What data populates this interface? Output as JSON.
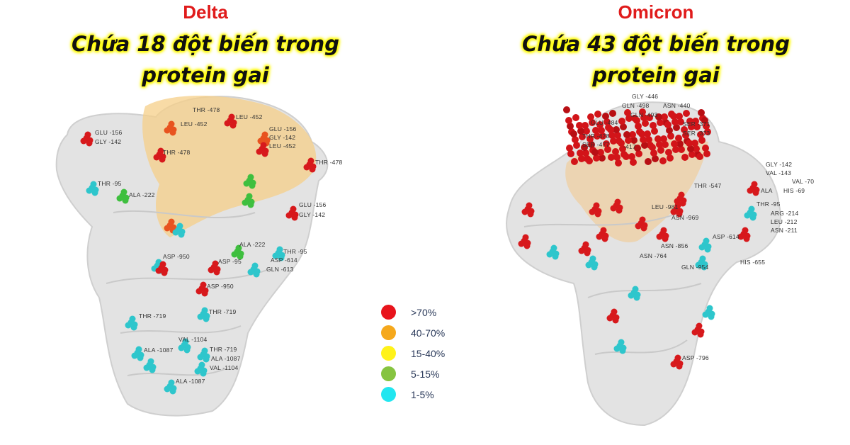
{
  "delta": {
    "name": "Delta",
    "subtitle_line1": "Chứa 18 đột biến trong",
    "subtitle_line2": "protein gai",
    "labels": [
      "THR -478",
      "LEU -452",
      "LEU -452",
      "GLU -156",
      "GLY -142",
      "LEU -452",
      "THR -478",
      "GLU -156",
      "GLY -142",
      "THR -478",
      "THR -95",
      "ALA -222",
      "GLU -156",
      "GLY -142",
      "ASP -950",
      "ALA -222",
      "THR -95",
      "ASP -95",
      "ASP -614",
      "GLN -613",
      "ASP -950",
      "THR -719",
      "THR -719",
      "VAL -1104",
      "ALA -1087",
      "THR -719",
      "ALA -1087",
      "VAL -1104",
      "ALA -1087"
    ]
  },
  "omicron": {
    "name": "Omicron",
    "subtitle_line1": "Chứa 43 đột biến trong",
    "subtitle_line2": "protein gai",
    "labels": [
      "GLY -446",
      "GLN -498",
      "ASN -440",
      "GLN -493",
      "GLU -484",
      "THR -478",
      "SER -477",
      "SER -371",
      "SER -373",
      "-417",
      "THR -547",
      "LEU -981",
      "ASN -969",
      "ASP -614",
      "ASN -856",
      "ASN -764",
      "GLN -954",
      "HIS -655",
      "GLY -142",
      "VAL -143",
      "VAL -70",
      "ALA",
      "HIS -69",
      "THR -95",
      "ARG -214",
      "LEU -212",
      "ASN -211",
      "ASP -796"
    ]
  },
  "legend": [
    {
      "label": ">70%",
      "color": "#e8141c"
    },
    {
      "label": "40-70%",
      "color": "#f5a81c"
    },
    {
      "label": "15-40%",
      "color": "#fff21a"
    },
    {
      "label": "5-15%",
      "color": "#86c440"
    },
    {
      "label": "1-5%",
      "color": "#22e6f0"
    }
  ]
}
